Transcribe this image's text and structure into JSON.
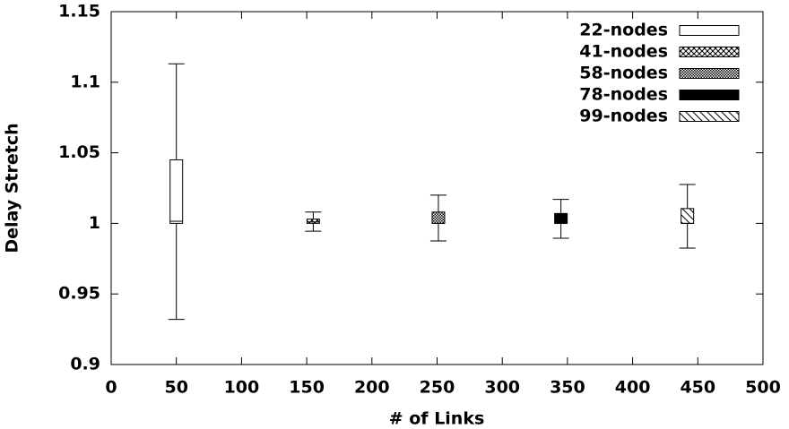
{
  "chart_data": {
    "type": "box",
    "xlabel": "# of Links",
    "ylabel": "Delay Stretch",
    "xlim": [
      0,
      500
    ],
    "xticks": [
      0,
      50,
      100,
      150,
      200,
      250,
      300,
      350,
      400,
      450,
      500
    ],
    "ylim": [
      0.9,
      1.15
    ],
    "yticks": [
      0.9,
      0.95,
      1,
      1.05,
      1.1,
      1.15
    ],
    "legend": "upper-right",
    "series": [
      {
        "name": "22-nodes",
        "pattern": "none",
        "color": "#000000",
        "x": 50,
        "min": 0.932,
        "q1": 1.0,
        "median": 1.0015,
        "q3": 1.045,
        "max": 1.113
      },
      {
        "name": "41-nodes",
        "pattern": "crosshatch",
        "color": "#000000",
        "x": 155,
        "min": 0.9945,
        "q1": 1.0,
        "median": 1.001,
        "q3": 1.003,
        "max": 1.008
      },
      {
        "name": "58-nodes",
        "pattern": "dots",
        "color": "#000000",
        "x": 251,
        "min": 0.9876,
        "q1": 1.0,
        "median": 1.0,
        "q3": 1.008,
        "max": 1.02
      },
      {
        "name": "78-nodes",
        "pattern": "solid",
        "color": "#000000",
        "x": 345,
        "min": 0.9895,
        "q1": 1.0,
        "median": 1.0,
        "q3": 1.007,
        "max": 1.017
      },
      {
        "name": "99-nodes",
        "pattern": "diagonal",
        "color": "#000000",
        "x": 442,
        "min": 0.9825,
        "q1": 1.0,
        "median": 1.0,
        "q3": 1.0105,
        "max": 1.0275
      }
    ]
  }
}
